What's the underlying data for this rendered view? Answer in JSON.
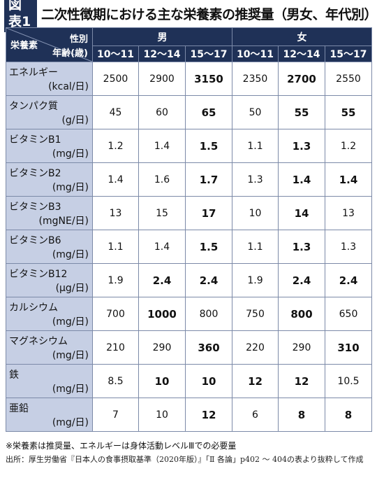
{
  "figure": {
    "label": "図表1",
    "title": "二次性徴期における主な栄養素の推奨量（男女、年代別）"
  },
  "header": {
    "nutrient": "栄養素",
    "sex": "性別",
    "age": "年齢(歳)",
    "male": "男",
    "female": "女",
    "ages": [
      "10〜11",
      "12〜14",
      "15〜17",
      "10〜11",
      "12〜14",
      "15〜17"
    ]
  },
  "rows": [
    {
      "name": "エネルギー",
      "unit": "(kcal/日)",
      "values": [
        "2500",
        "2900",
        "3150",
        "2350",
        "2700",
        "2550"
      ],
      "bold": [
        false,
        false,
        true,
        false,
        true,
        false
      ]
    },
    {
      "name": "タンパク質",
      "unit": "(g/日)",
      "values": [
        "45",
        "60",
        "65",
        "50",
        "55",
        "55"
      ],
      "bold": [
        false,
        false,
        true,
        false,
        true,
        true
      ]
    },
    {
      "name": "ビタミンB1",
      "unit": "(mg/日)",
      "values": [
        "1.2",
        "1.4",
        "1.5",
        "1.1",
        "1.3",
        "1.2"
      ],
      "bold": [
        false,
        false,
        true,
        false,
        true,
        false
      ]
    },
    {
      "name": "ビタミンB2",
      "unit": "(mg/日)",
      "values": [
        "1.4",
        "1.6",
        "1.7",
        "1.3",
        "1.4",
        "1.4"
      ],
      "bold": [
        false,
        false,
        true,
        false,
        true,
        true
      ]
    },
    {
      "name": "ビタミンB3",
      "unit": "(mgNE/日)",
      "values": [
        "13",
        "15",
        "17",
        "10",
        "14",
        "13"
      ],
      "bold": [
        false,
        false,
        true,
        false,
        true,
        false
      ]
    },
    {
      "name": "ビタミンB6",
      "unit": "(mg/日)",
      "values": [
        "1.1",
        "1.4",
        "1.5",
        "1.1",
        "1.3",
        "1.3"
      ],
      "bold": [
        false,
        false,
        true,
        false,
        true,
        false
      ]
    },
    {
      "name": "ビタミンB12",
      "unit": "(μg/日)",
      "values": [
        "1.9",
        "2.4",
        "2.4",
        "1.9",
        "2.4",
        "2.4"
      ],
      "bold": [
        false,
        true,
        true,
        false,
        true,
        true
      ]
    },
    {
      "name": "カルシウム",
      "unit": "(mg/日)",
      "values": [
        "700",
        "1000",
        "800",
        "750",
        "800",
        "650"
      ],
      "bold": [
        false,
        true,
        false,
        false,
        true,
        false
      ]
    },
    {
      "name": "マグネシウム",
      "unit": "(mg/日)",
      "values": [
        "210",
        "290",
        "360",
        "220",
        "290",
        "310"
      ],
      "bold": [
        false,
        false,
        true,
        false,
        false,
        true
      ]
    },
    {
      "name": "鉄",
      "unit": "(mg/日)",
      "values": [
        "8.5",
        "10",
        "10",
        "12",
        "12",
        "10.5"
      ],
      "bold": [
        false,
        true,
        true,
        true,
        true,
        false
      ]
    },
    {
      "name": "亜鉛",
      "unit": "(mg/日)",
      "values": [
        "7",
        "10",
        "12",
        "6",
        "8",
        "8"
      ],
      "bold": [
        false,
        false,
        true,
        false,
        true,
        true
      ]
    }
  ],
  "note": "※栄養素は推奨量、エネルギーは身体活動レベルⅢでの必要量",
  "source": "出所：厚生労働省『日本人の食事摂取基準（2020年版）』「Ⅱ 各論」p402 〜 404の表より抜粋して作成",
  "colors": {
    "header_bg": "#1f3157",
    "label_bg": "#c6cfe4"
  }
}
